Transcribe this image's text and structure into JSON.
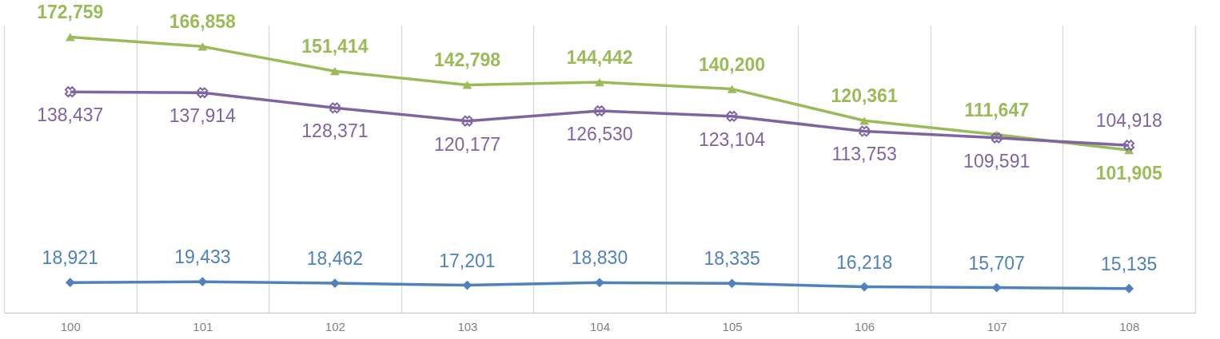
{
  "chart_data": {
    "type": "line",
    "categories": [
      "100",
      "101",
      "102",
      "103",
      "104",
      "105",
      "106",
      "107",
      "108"
    ],
    "series": [
      {
        "color": "#9bbb59",
        "marker": "triangle",
        "values": [
          172759,
          166858,
          151414,
          142798,
          144442,
          140200,
          120361,
          111647,
          101905
        ],
        "value_labels": [
          "172,759",
          "166,858",
          "151,414",
          "142,798",
          "144,442",
          "140,200",
          "120,361",
          "111,647",
          "101,905"
        ]
      },
      {
        "color": "#8064a2",
        "marker": "cross",
        "values": [
          138437,
          137914,
          128371,
          120177,
          126530,
          123104,
          113753,
          109591,
          104918
        ],
        "value_labels": [
          "138,437",
          "137,914",
          "128,371",
          "120,177",
          "126,530",
          "123,104",
          "113,753",
          "109,591",
          "104,918"
        ]
      },
      {
        "color": "#4f81bd",
        "marker": "diamond",
        "values": [
          18921,
          19433,
          18462,
          17201,
          18830,
          18335,
          16218,
          15707,
          15135
        ],
        "value_labels": [
          "18,921",
          "19,433",
          "18,462",
          "17,201",
          "18,830",
          "18,335",
          "16,218",
          "15,707",
          "15,135"
        ]
      }
    ],
    "grid": "x"
  }
}
